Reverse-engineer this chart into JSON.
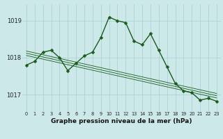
{
  "title": "Graphe pression niveau de la mer (hPa)",
  "bg_color": "#cce8e8",
  "grid_color": "#aad4d4",
  "line_color": "#1a5c1a",
  "x_labels": [
    "0",
    "1",
    "2",
    "3",
    "4",
    "5",
    "6",
    "7",
    "8",
    "9",
    "10",
    "11",
    "12",
    "13",
    "14",
    "15",
    "16",
    "17",
    "18",
    "19",
    "20",
    "21",
    "22",
    "23"
  ],
  "main_line": [
    1017.8,
    1017.9,
    1018.15,
    1018.2,
    1018.0,
    1017.65,
    1017.85,
    1018.05,
    1018.15,
    1018.55,
    1019.1,
    1019.0,
    1018.95,
    1018.45,
    1018.35,
    1018.65,
    1018.2,
    1017.75,
    1017.3,
    1017.1,
    1017.05,
    1016.85,
    1016.9,
    1016.82
  ],
  "trend_line1": [
    1018.18,
    1018.13,
    1018.08,
    1018.03,
    1017.98,
    1017.93,
    1017.88,
    1017.83,
    1017.78,
    1017.73,
    1017.68,
    1017.63,
    1017.58,
    1017.53,
    1017.48,
    1017.43,
    1017.38,
    1017.33,
    1017.28,
    1017.23,
    1017.18,
    1017.13,
    1017.08,
    1017.03
  ],
  "trend_line2": [
    1018.12,
    1018.07,
    1018.02,
    1017.97,
    1017.92,
    1017.87,
    1017.82,
    1017.77,
    1017.72,
    1017.67,
    1017.62,
    1017.57,
    1017.52,
    1017.47,
    1017.42,
    1017.37,
    1017.32,
    1017.27,
    1017.22,
    1017.17,
    1017.12,
    1017.07,
    1017.02,
    1016.97
  ],
  "trend_line3": [
    1018.06,
    1018.01,
    1017.96,
    1017.91,
    1017.86,
    1017.81,
    1017.76,
    1017.71,
    1017.66,
    1017.61,
    1017.56,
    1017.51,
    1017.46,
    1017.41,
    1017.36,
    1017.31,
    1017.26,
    1017.21,
    1017.16,
    1017.11,
    1017.06,
    1017.01,
    1016.96,
    1016.91
  ],
  "ylim": [
    1016.55,
    1019.45
  ],
  "yticks": [
    1017.0,
    1018.0,
    1019.0
  ],
  "marker_size": 2.5,
  "line_width": 1.0,
  "title_fontsize": 6.5,
  "tick_fontsize": 6.0,
  "xtick_fontsize": 4.8
}
